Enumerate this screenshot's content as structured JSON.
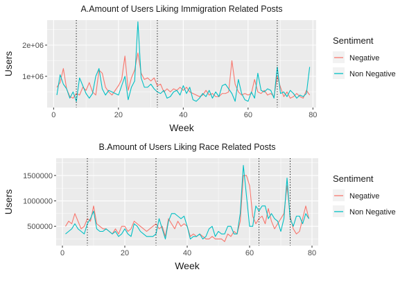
{
  "colors": {
    "negative": "#F8766D",
    "non_negative": "#00BFC4",
    "panel": "#EBEBEB",
    "grid": "#FFFFFF",
    "vline": "#000000"
  },
  "chart_data": [
    {
      "type": "line",
      "title": "A.Amount of Users Liking Immigration Related Posts",
      "xlabel": "Week",
      "ylabel": "Users",
      "xlim": [
        -2,
        81
      ],
      "ylim": [
        0,
        2800000
      ],
      "x_ticks": [
        0,
        20,
        40,
        60,
        80
      ],
      "x_tick_labels": [
        "0",
        "20",
        "40",
        "60",
        "80"
      ],
      "y_ticks": [
        1000000,
        2000000
      ],
      "y_tick_labels": [
        "1e+06",
        "2e+06"
      ],
      "vlines": [
        7,
        32,
        69
      ],
      "legend": {
        "title": "Sentiment",
        "entries": [
          "Negative",
          "Non Negative"
        ],
        "position": "right"
      },
      "x": [
        1,
        2,
        3,
        4,
        5,
        6,
        7,
        8,
        9,
        10,
        11,
        12,
        13,
        14,
        15,
        16,
        17,
        18,
        19,
        20,
        21,
        22,
        23,
        24,
        25,
        26,
        27,
        28,
        29,
        30,
        31,
        32,
        33,
        34,
        35,
        36,
        37,
        38,
        39,
        40,
        41,
        42,
        43,
        44,
        45,
        46,
        47,
        48,
        49,
        50,
        51,
        52,
        53,
        54,
        55,
        56,
        57,
        58,
        59,
        60,
        61,
        62,
        63,
        64,
        65,
        66,
        67,
        68,
        69,
        70,
        71,
        72,
        73,
        74,
        75,
        76,
        77,
        78,
        79
      ],
      "series": [
        {
          "name": "Negative",
          "values": [
            650000,
            800000,
            1250000,
            600000,
            350000,
            300000,
            450000,
            400000,
            650000,
            550000,
            800000,
            500000,
            400000,
            1200000,
            1100000,
            650000,
            500000,
            400000,
            550000,
            700000,
            900000,
            1650000,
            550000,
            950000,
            1200000,
            1750000,
            1100000,
            900000,
            950000,
            850000,
            950000,
            700000,
            750000,
            500000,
            600000,
            500000,
            600000,
            550000,
            650000,
            550000,
            650000,
            500000,
            450000,
            400000,
            350000,
            400000,
            550000,
            400000,
            450000,
            350000,
            350000,
            450000,
            450000,
            500000,
            1500000,
            750000,
            500000,
            400000,
            450000,
            400000,
            450000,
            900000,
            500000,
            450000,
            550000,
            400000,
            450000,
            350000,
            1000000,
            650000,
            350000,
            500000,
            300000,
            350000,
            450000,
            350000,
            300000,
            550000,
            400000
          ]
        },
        {
          "name": "Non Negative",
          "values": [
            400000,
            1050000,
            750000,
            600000,
            300000,
            500000,
            200000,
            950000,
            700000,
            450000,
            300000,
            450000,
            1000000,
            1250000,
            600000,
            400000,
            550000,
            500000,
            450000,
            400000,
            700000,
            1000000,
            250000,
            650000,
            850000,
            2750000,
            950000,
            650000,
            650000,
            750000,
            600000,
            500000,
            450000,
            550000,
            300000,
            350000,
            500000,
            550000,
            400000,
            700000,
            450000,
            650000,
            250000,
            200000,
            300000,
            450000,
            350000,
            550000,
            300000,
            500000,
            350000,
            700000,
            750000,
            600000,
            450000,
            200000,
            900000,
            450000,
            250000,
            200000,
            500000,
            300000,
            1100000,
            550000,
            500000,
            600000,
            550000,
            300000,
            1300000,
            450000,
            500000,
            350000,
            550000,
            450000,
            300000,
            400000,
            350000,
            450000,
            1300000
          ]
        }
      ]
    },
    {
      "type": "line",
      "title": "B.Amount of Users Liking Race Related Posts",
      "xlabel": "Week",
      "ylabel": "Users",
      "xlim": [
        -2,
        82
      ],
      "ylim": [
        120000,
        1840000
      ],
      "x_ticks": [
        0,
        20,
        40,
        60,
        80
      ],
      "x_tick_labels": [
        "0",
        "20",
        "40",
        "60",
        "80"
      ],
      "y_ticks": [
        500000,
        1000000,
        1500000
      ],
      "y_tick_labels": [
        "500000",
        "1000000",
        "1500000"
      ],
      "vlines": [
        8,
        30,
        63,
        73
      ],
      "legend": {
        "title": "Sentiment",
        "entries": [
          "Negative",
          "Non Negative"
        ],
        "position": "right"
      },
      "x": [
        1,
        2,
        3,
        4,
        5,
        6,
        7,
        8,
        9,
        10,
        11,
        12,
        13,
        14,
        15,
        16,
        17,
        18,
        19,
        20,
        21,
        22,
        23,
        24,
        25,
        26,
        27,
        28,
        29,
        30,
        31,
        32,
        33,
        34,
        35,
        36,
        37,
        38,
        39,
        40,
        41,
        42,
        43,
        44,
        45,
        46,
        47,
        48,
        49,
        50,
        51,
        52,
        53,
        54,
        55,
        56,
        57,
        58,
        59,
        60,
        61,
        62,
        63,
        64,
        65,
        66,
        67,
        68,
        69,
        70,
        71,
        72,
        73,
        74,
        75,
        76,
        77,
        78,
        79
      ],
      "series": [
        {
          "name": "Negative",
          "values": [
            500000,
            600000,
            550000,
            750000,
            600000,
            450000,
            500000,
            650000,
            600000,
            900000,
            550000,
            500000,
            450000,
            450000,
            400000,
            350000,
            450000,
            350000,
            500000,
            500000,
            400000,
            450000,
            600000,
            550000,
            500000,
            450000,
            400000,
            450000,
            500000,
            550000,
            450000,
            500000,
            300000,
            650000,
            550000,
            450000,
            600000,
            500000,
            550000,
            500000,
            300000,
            350000,
            300000,
            350000,
            300000,
            250000,
            250000,
            300000,
            250000,
            250000,
            250000,
            200000,
            350000,
            300000,
            400000,
            350000,
            600000,
            1500000,
            1500000,
            1300000,
            700000,
            550000,
            650000,
            700000,
            550000,
            850000,
            600000,
            450000,
            550000,
            650000,
            750000,
            1300000,
            700000,
            450000,
            350000,
            400000,
            650000,
            900000,
            650000
          ]
        },
        {
          "name": "Non Negative",
          "values": [
            350000,
            400000,
            450000,
            550000,
            450000,
            400000,
            350000,
            550000,
            650000,
            800000,
            450000,
            400000,
            400000,
            450000,
            400000,
            350000,
            400000,
            300000,
            350000,
            450000,
            350000,
            300000,
            550000,
            500000,
            400000,
            350000,
            300000,
            300000,
            300000,
            350000,
            650000,
            450000,
            250000,
            600000,
            750000,
            750000,
            700000,
            650000,
            700000,
            500000,
            250000,
            300000,
            300000,
            350000,
            250000,
            300000,
            450000,
            500000,
            300000,
            400000,
            350000,
            350000,
            500000,
            500000,
            350000,
            350000,
            750000,
            1700000,
            1100000,
            500000,
            500000,
            900000,
            800000,
            900000,
            900000,
            650000,
            750000,
            650000,
            600000,
            400000,
            650000,
            1450000,
            650000,
            500000,
            700000,
            700000,
            550000,
            750000,
            650000
          ]
        }
      ]
    }
  ]
}
